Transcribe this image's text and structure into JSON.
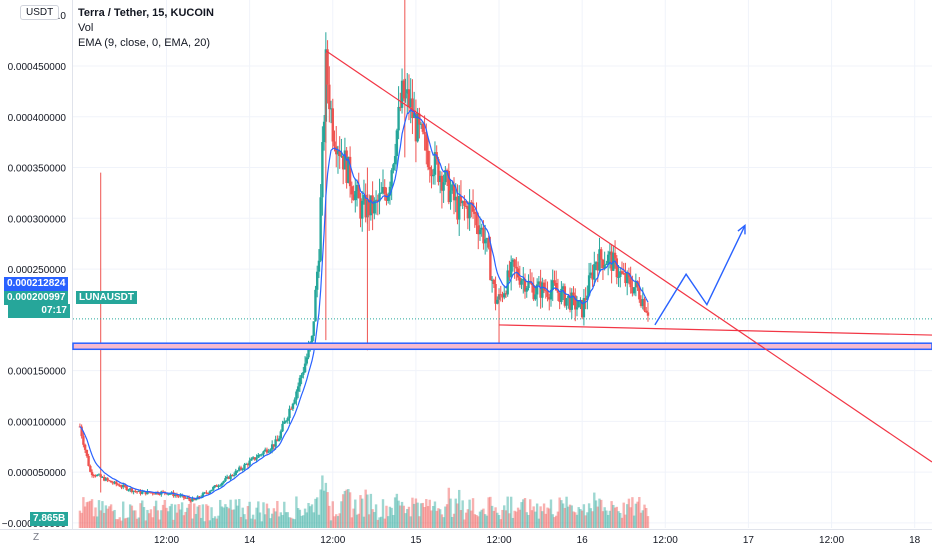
{
  "symbol_title": "Terra / Tether, 15, KUCOIN",
  "indicators": [
    "Vol",
    "EMA (9, close, 0, EMA, 20)"
  ],
  "currency_chip": "USDT",
  "symbol_tag": "LUNAUSDT",
  "scale_button": "Z",
  "price_labels": {
    "last_price": "0.000212824",
    "current_price": "0.000200997",
    "countdown": "07:17",
    "volume": "7.865B"
  },
  "colors": {
    "up": "#26a69a",
    "down": "#ef5350",
    "ema": "#2962ff",
    "trendline": "#f23645",
    "arrow": "#2962ff",
    "support_band": "#2962ff",
    "last_price": "#2962ff"
  },
  "chart_data": {
    "type": "candlestick",
    "title": "Terra / Tether, 15, KUCOIN",
    "ylim": [
      -5e-06,
      0.000515
    ],
    "yticks": [
      0.00045,
      0.0004,
      0.00035,
      0.0003,
      0.00025,
      0.00015,
      0.0001,
      5e-05,
      0
    ],
    "ytick_labels": [
      "0.000450000",
      "0.000400000",
      "0.000350000",
      "0.000300000",
      "0.000250000",
      "0.000150000",
      "0.000100000",
      "0.000050000",
      "−0.000000000"
    ],
    "top_tick_label": "0.0",
    "x_labels": [
      "12:00",
      "14",
      "12:00",
      "15",
      "12:00",
      "16",
      "12:00",
      "17",
      "12:00",
      "18"
    ],
    "x_label_times": [
      -36,
      -24,
      -12,
      0,
      12,
      24,
      36,
      48,
      60,
      72
    ],
    "x_unit": "hours from start of day 15",
    "xlim": [
      -49.5,
      74.5
    ],
    "price_path": [
      {
        "t": -48.5,
        "p": 9.5e-05
      },
      {
        "t": -47,
        "p": 5e-05
      },
      {
        "t": -44,
        "p": 4e-05
      },
      {
        "t": -40,
        "p": 3e-05
      },
      {
        "t": -36,
        "p": 3e-05
      },
      {
        "t": -32,
        "p": 2.2e-05
      },
      {
        "t": -28,
        "p": 4e-05
      },
      {
        "t": -24,
        "p": 6e-05
      },
      {
        "t": -20,
        "p": 8e-05
      },
      {
        "t": -17,
        "p": 0.000135
      },
      {
        "t": -15,
        "p": 0.00018
      },
      {
        "t": -14,
        "p": 0.00027
      },
      {
        "t": -13,
        "p": 0.00045
      },
      {
        "t": -12,
        "p": 0.00039
      },
      {
        "t": -10,
        "p": 0.00035
      },
      {
        "t": -8,
        "p": 0.00031
      },
      {
        "t": -6,
        "p": 0.00031
      },
      {
        "t": -4,
        "p": 0.00033
      },
      {
        "t": -2,
        "p": 0.00042
      },
      {
        "t": -1,
        "p": 0.000415
      },
      {
        "t": 0,
        "p": 0.00039
      },
      {
        "t": 2,
        "p": 0.00036
      },
      {
        "t": 4,
        "p": 0.00034
      },
      {
        "t": 6,
        "p": 0.00031
      },
      {
        "t": 8,
        "p": 0.00031
      },
      {
        "t": 10,
        "p": 0.00028
      },
      {
        "t": 11.5,
        "p": 0.00022
      },
      {
        "t": 12,
        "p": 0.00022
      },
      {
        "t": 14,
        "p": 0.00025
      },
      {
        "t": 17,
        "p": 0.00023
      },
      {
        "t": 20,
        "p": 0.00023
      },
      {
        "t": 22,
        "p": 0.00022
      },
      {
        "t": 24,
        "p": 0.00021
      },
      {
        "t": 26,
        "p": 0.00026
      },
      {
        "t": 28,
        "p": 0.00026
      },
      {
        "t": 30,
        "p": 0.00024
      },
      {
        "t": 32,
        "p": 0.00023
      },
      {
        "t": 33.5,
        "p": 0.00021
      }
    ],
    "candle_step_hours": 0.25,
    "wick_spikes": [
      {
        "t": -45.5,
        "high": 0.000345,
        "low": 3e-05
      },
      {
        "t": -1.6,
        "high": 0.000525,
        "low": 0.00036
      },
      {
        "t": -7,
        "high": 0.00035,
        "low": 0.00017
      },
      {
        "t": -13,
        "high": 0.000463,
        "low": 0.00018
      },
      {
        "t": 12,
        "high": 0.00023,
        "low": 0.000175
      }
    ],
    "ema_period": 9,
    "volume_max_label": "7.865B",
    "drawings": {
      "resistance_line": {
        "from": {
          "t": -13,
          "p": 0.000465
        },
        "to": {
          "t": 74.5,
          "p": 6e-05
        }
      },
      "support_line": {
        "from": {
          "t": 12,
          "p": 0.000195
        },
        "to": {
          "t": 74.5,
          "p": 0.000185
        }
      },
      "support_band": {
        "p_low": 0.000171,
        "p_high": 0.000177
      },
      "dotted_price_level": 0.000201,
      "projection_arrow": [
        {
          "t": 34.5,
          "p": 0.000195
        },
        {
          "t": 39,
          "p": 0.000245
        },
        {
          "t": 42,
          "p": 0.000215
        },
        {
          "t": 47.5,
          "p": 0.000293
        }
      ]
    }
  }
}
